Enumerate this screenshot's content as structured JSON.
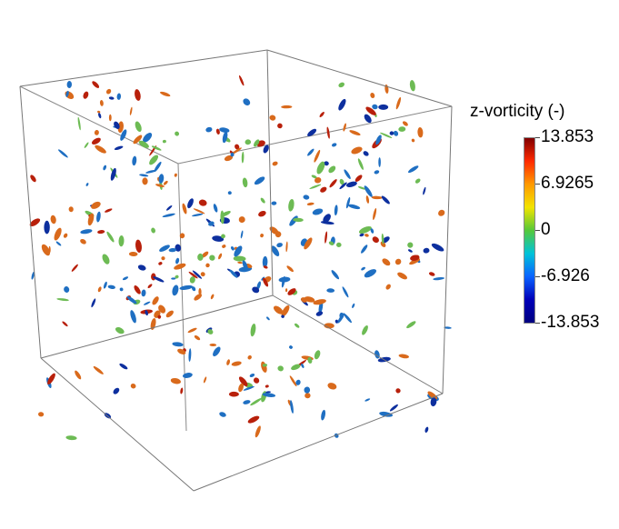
{
  "legend": {
    "title": "z-vorticity (-)",
    "ticks": [
      "13.853",
      "6.9265",
      "0",
      "-6.926",
      "-13.853"
    ],
    "range": [
      -13.853,
      13.853
    ],
    "colormap": [
      "#800000",
      "#ff2a00",
      "#ff9900",
      "#f2e400",
      "#55c83a",
      "#00c3d8",
      "#0a63ff",
      "#0000b8",
      "#000080"
    ]
  },
  "scene": {
    "background": "#ffffff",
    "frame_color": "#888888",
    "structure_colors": {
      "positive": "#d96a1c",
      "strong_positive": "#b8200b",
      "negative": "#1f6fc2",
      "strong_negative": "#0d2f9e",
      "neutral": "#6dbb54"
    }
  }
}
